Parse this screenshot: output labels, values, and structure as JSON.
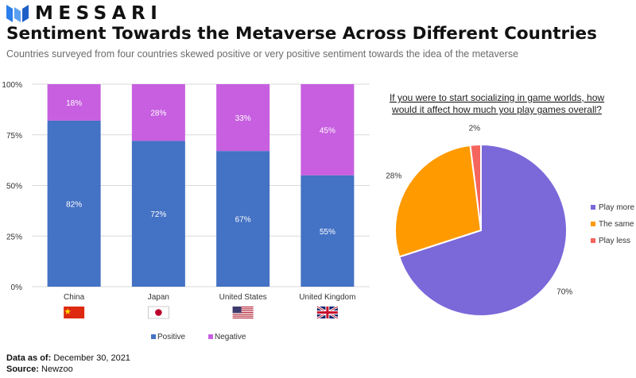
{
  "header": {
    "brand": "MESSARI",
    "title": "Sentiment Towards the Metaverse Across Different Countries",
    "subtitle": "Countries surveyed from four countries skewed positive or very positive sentiment towards the idea of the metaverse"
  },
  "footer": {
    "date_label": "Data as of:",
    "date_value": "December 30, 2021",
    "source_label": "Source:",
    "source_value": "Newzoo"
  },
  "chart_data": [
    {
      "type": "bar",
      "stacked": true,
      "categories": [
        "China",
        "Japan",
        "United States",
        "United Kingdom"
      ],
      "flags": [
        "china-flag-icon",
        "japan-flag-icon",
        "us-flag-icon",
        "uk-flag-icon"
      ],
      "series": [
        {
          "name": "Positive",
          "values": [
            82,
            72,
            67,
            55
          ],
          "color": "#4472c4"
        },
        {
          "name": "Negative",
          "values": [
            18,
            28,
            33,
            45
          ],
          "color": "#c75fe0"
        }
      ],
      "ylim": [
        0,
        100
      ],
      "yticks": [
        "0%",
        "25%",
        "50%",
        "75%",
        "100%"
      ],
      "grid": true,
      "legend": "bottom"
    },
    {
      "type": "pie",
      "title_lines": [
        "If you were to start socializing in game worlds, how",
        "would it affect how much you play games overall?"
      ],
      "slices": [
        {
          "label": "Play more",
          "value": 70,
          "color": "#7b68d9"
        },
        {
          "label": "The same",
          "value": 28,
          "color": "#ff9a00"
        },
        {
          "label": "Play less",
          "value": 2,
          "color": "#f4655e"
        }
      ],
      "legend": "right"
    }
  ]
}
